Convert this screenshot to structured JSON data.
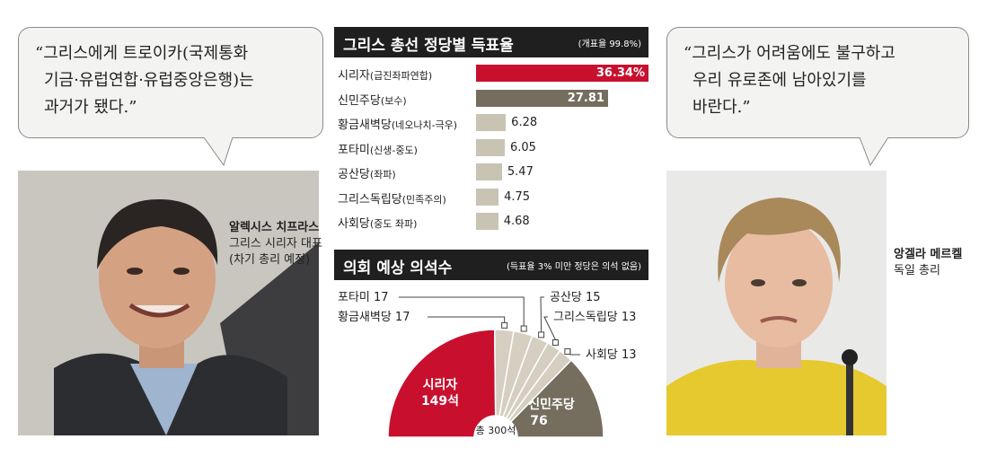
{
  "quotes": {
    "left": [
      "“그리스에게 트로이카(국제통화",
      "기금·유럽연합·유럽중앙은행)는",
      "과거가 됐다.”"
    ],
    "right": [
      "“그리스가 어려움에도 불구하고",
      "우리 유로존에 남아있기를",
      "바란다.”"
    ]
  },
  "captions": {
    "left": {
      "name": "알렉시스 치프라스",
      "role1": "그리스 시리자 대표",
      "role2": "(차기 총리 예정)"
    },
    "right": {
      "name": "앙겔라 메르켈",
      "role1": "독일 총리"
    }
  },
  "chart_data": [
    {
      "type": "bar",
      "title": "그리스 총선 정당별 득표율",
      "note": "(개표율 99.8%)",
      "categories": [
        "시리자",
        "신민주당",
        "황금새벽당",
        "포타미",
        "공산당",
        "그리스독립당",
        "사회당"
      ],
      "category_notes": [
        "(급진좌파연합)",
        "(보수)",
        "(네오나치-극우)",
        "(신생-중도)",
        "(좌파)",
        "(민족주의)",
        "(중도 좌파)"
      ],
      "values": [
        36.34,
        27.81,
        6.28,
        6.05,
        5.47,
        4.75,
        4.68
      ],
      "value_labels": [
        "36.34%",
        "27.81",
        "6.28",
        "6.05",
        "5.47",
        "4.75",
        "4.68"
      ],
      "bar_colors": [
        "#c8102e",
        "#756d5e",
        "#c9c3b4",
        "#c9c3b4",
        "#c9c3b4",
        "#c9c3b4",
        "#c9c3b4"
      ],
      "value_colors": [
        "#ffffff",
        "#ffffff",
        "#222222",
        "#222222",
        "#222222",
        "#222222",
        "#222222"
      ]
    },
    {
      "type": "pie",
      "subtype": "half-donut",
      "title": "의회 예상 의석수",
      "note": "(득표율 3% 미만 정당은 의석 없음)",
      "total_label": "총 300석",
      "slices": [
        {
          "name": "시리자",
          "value": 149,
          "label": "149석",
          "color": "#c8102e"
        },
        {
          "name": "황금새벽당",
          "value": 17,
          "label": "황금새벽당 17",
          "color": "#d5cfc1"
        },
        {
          "name": "포타미",
          "value": 17,
          "label": "포타미 17",
          "color": "#d5cfc1"
        },
        {
          "name": "공산당",
          "value": 15,
          "label": "공산당 15",
          "color": "#d5cfc1"
        },
        {
          "name": "그리스독립당",
          "value": 13,
          "label": "그리스독립당 13",
          "color": "#d5cfc1"
        },
        {
          "name": "사회당",
          "value": 13,
          "label": "사회당 13",
          "color": "#d5cfc1"
        },
        {
          "name": "신민주당",
          "value": 76,
          "label": "76",
          "color": "#756d5e"
        }
      ]
    }
  ]
}
